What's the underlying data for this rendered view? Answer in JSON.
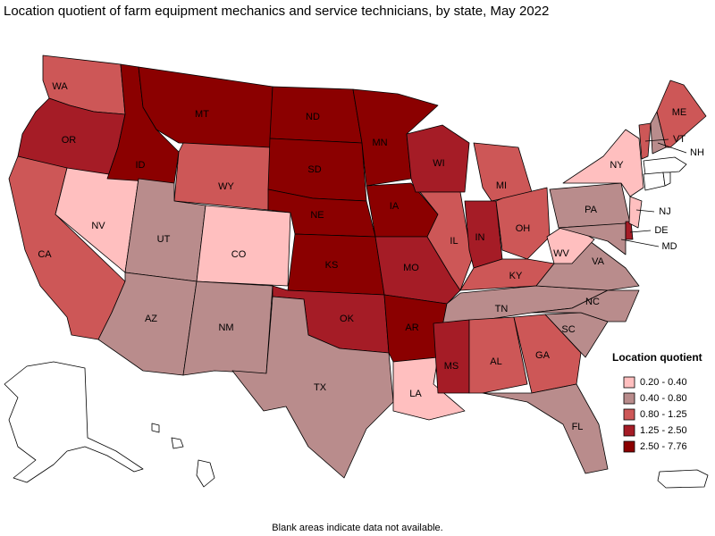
{
  "header": {
    "title": "Location quotient of farm equipment mechanics and service technicians, by state, May 2022"
  },
  "legend": {
    "title": "Location quotient",
    "entries": [
      {
        "label": "0.20 - 0.40",
        "color": "#ffbfbf"
      },
      {
        "label": "0.40 - 0.80",
        "color": "#b98c8c"
      },
      {
        "label": "0.80 - 1.25",
        "color": "#cd5757"
      },
      {
        "label": "1.25 - 2.50",
        "color": "#a51c26"
      },
      {
        "label": "2.50 - 7.76",
        "color": "#8b0000"
      }
    ]
  },
  "regions": [
    {
      "label": "WA",
      "color": "#cd5757"
    },
    {
      "label": "OR",
      "color": "#a51c26"
    },
    {
      "label": "CA",
      "color": "#cd5757"
    },
    {
      "label": "NV",
      "color": "#ffbfbf"
    },
    {
      "label": "ID",
      "color": "#8b0000"
    },
    {
      "label": "MT",
      "color": "#8b0000"
    },
    {
      "label": "WY",
      "color": "#cd5757"
    },
    {
      "label": "UT",
      "color": "#b98c8c"
    },
    {
      "label": "CO",
      "color": "#ffbfbf"
    },
    {
      "label": "AZ",
      "color": "#b98c8c"
    },
    {
      "label": "NM",
      "color": "#b98c8c"
    },
    {
      "label": "ND",
      "color": "#8b0000"
    },
    {
      "label": "SD",
      "color": "#8b0000"
    },
    {
      "label": "NE",
      "color": "#8b0000"
    },
    {
      "label": "KS",
      "color": "#8b0000"
    },
    {
      "label": "OK",
      "color": "#a51c26"
    },
    {
      "label": "TX",
      "color": "#b98c8c"
    },
    {
      "label": "MN",
      "color": "#8b0000"
    },
    {
      "label": "IA",
      "color": "#8b0000"
    },
    {
      "label": "MO",
      "color": "#a51c26"
    },
    {
      "label": "AR",
      "color": "#8b0000"
    },
    {
      "label": "LA",
      "color": "#ffbfbf"
    },
    {
      "label": "WI",
      "color": "#a51c26"
    },
    {
      "label": "IL",
      "color": "#cd5757"
    },
    {
      "label": "MI",
      "color": "#cd5757"
    },
    {
      "label": "IN",
      "color": "#a51c26"
    },
    {
      "label": "OH",
      "color": "#cd5757"
    },
    {
      "label": "KY",
      "color": "#cd5757"
    },
    {
      "label": "TN",
      "color": "#b98c8c"
    },
    {
      "label": "MS",
      "color": "#a51c26"
    },
    {
      "label": "AL",
      "color": "#cd5757"
    },
    {
      "label": "GA",
      "color": "#cd5757"
    },
    {
      "label": "FL",
      "color": "#b98c8c"
    },
    {
      "label": "SC",
      "color": "#b98c8c"
    },
    {
      "label": "NC",
      "color": "#b98c8c"
    },
    {
      "label": "VA",
      "color": "#b98c8c"
    },
    {
      "label": "WV",
      "color": "#ffbfbf"
    },
    {
      "label": "PA",
      "color": "#b98c8c"
    },
    {
      "label": "NY",
      "color": "#ffbfbf"
    },
    {
      "label": "MD",
      "color": "#b98c8c"
    },
    {
      "label": "DE",
      "color": "#a51c26"
    },
    {
      "label": "NJ",
      "color": "#ffbfbf"
    },
    {
      "label": "VT",
      "color": "#cd5757"
    },
    {
      "label": "NH",
      "color": "#b98c8c"
    },
    {
      "label": "ME",
      "color": "#cd5757"
    }
  ],
  "footer": {
    "note": "Blank areas indicate data not available."
  }
}
